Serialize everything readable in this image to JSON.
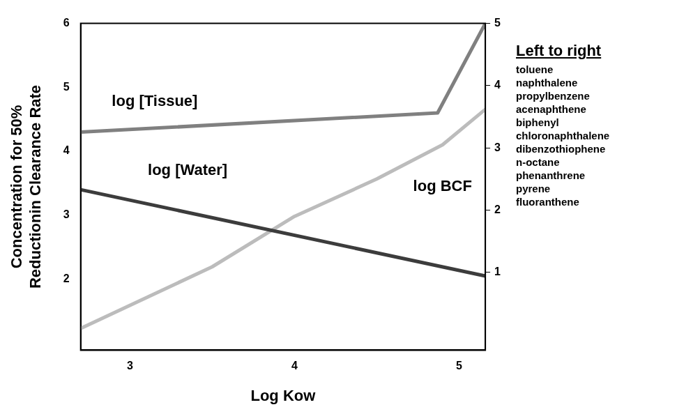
{
  "chart_data": {
    "type": "line",
    "xlabel": "Log Kow",
    "ylabel": "Concentration for 50%\nReductionin Clearance Rate",
    "xlim": [
      2.7,
      5.16
    ],
    "xticks": [
      3,
      4,
      5
    ],
    "ylim": [
      0.89,
      6
    ],
    "yticks": [
      2,
      3,
      4,
      5,
      6
    ],
    "y2lim": [
      -0.25,
      5
    ],
    "y2ticks": [
      1,
      2,
      3,
      4,
      5
    ],
    "series": [
      {
        "name": "log [Tissue]",
        "color": "#808080",
        "x": [
          2.7,
          4.87,
          5.16
        ],
        "values": [
          4.3,
          4.6,
          6
        ]
      },
      {
        "name": "log [Water]",
        "color": "#3c3c3c",
        "x": [
          2.7,
          5.16
        ],
        "values": [
          3.4,
          2.05
        ]
      },
      {
        "name": "log BCF",
        "color": "#bcbcbc",
        "axis": "y2",
        "x": [
          2.7,
          3.5,
          4,
          4.5,
          4.9,
          5.16
        ],
        "values": [
          0.1,
          1.09,
          1.9,
          2.5,
          3.05,
          3.62
        ]
      }
    ],
    "annotations": [
      "Left to right",
      "toluene",
      "naphthalene",
      "propylbenzene",
      "acenaphthene",
      "biphenyl",
      "chloronaphthalene",
      "dibenzothiophene",
      "n-octane",
      "phenanthrene",
      "pyrene",
      "fluoranthene"
    ],
    "grid": false,
    "legend": false,
    "marker": "none",
    "line_style": "solid"
  }
}
